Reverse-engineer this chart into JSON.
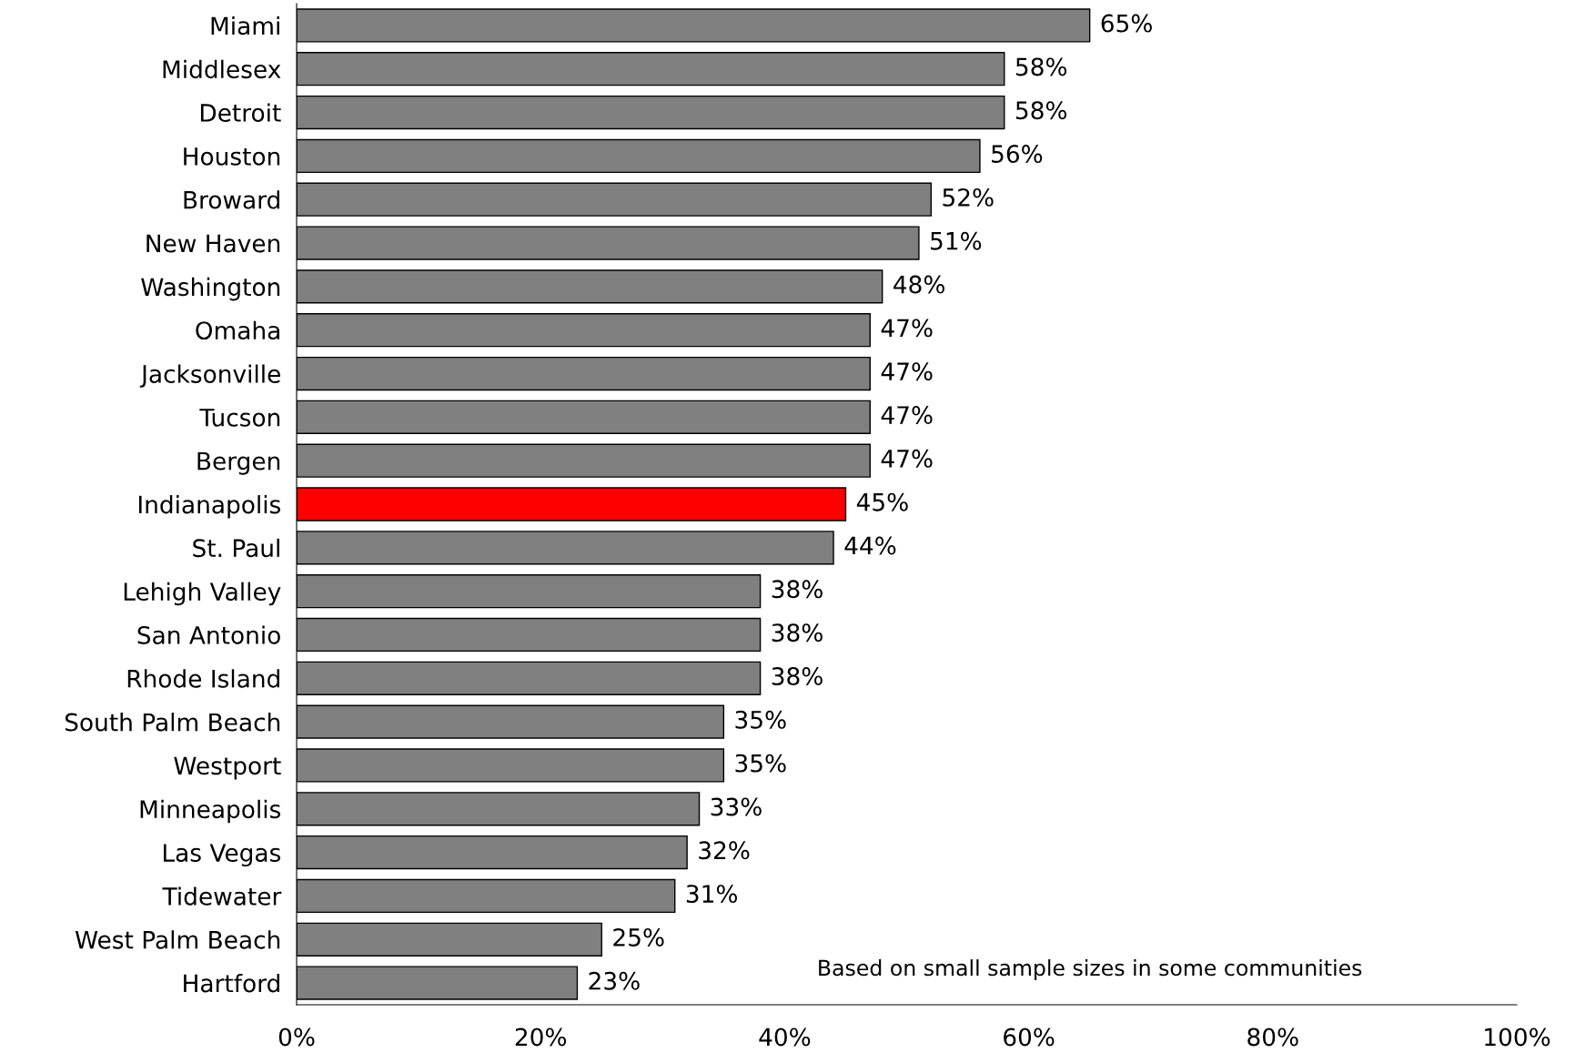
{
  "chart_data": {
    "type": "bar",
    "orientation": "horizontal",
    "categories": [
      "Miami",
      "Middlesex",
      "Detroit",
      "Houston",
      "Broward",
      "New Haven",
      "Washington",
      "Omaha",
      "Jacksonville",
      "Tucson",
      "Bergen",
      "Indianapolis",
      "St. Paul",
      "Lehigh Valley",
      "San Antonio",
      "Rhode Island",
      "South Palm Beach",
      "Westport",
      "Minneapolis",
      "Las Vegas",
      "Tidewater",
      "West Palm Beach",
      "Hartford"
    ],
    "values": [
      65,
      58,
      58,
      56,
      52,
      51,
      48,
      47,
      47,
      47,
      47,
      45,
      44,
      38,
      38,
      38,
      35,
      35,
      33,
      32,
      31,
      25,
      23
    ],
    "value_labels": [
      "65%",
      "58%",
      "58%",
      "56%",
      "52%",
      "51%",
      "48%",
      "47%",
      "47%",
      "47%",
      "47%",
      "45%",
      "44%",
      "38%",
      "38%",
      "38%",
      "35%",
      "35%",
      "33%",
      "32%",
      "31%",
      "25%",
      "23%"
    ],
    "colors": [
      "#808080",
      "#808080",
      "#808080",
      "#808080",
      "#808080",
      "#808080",
      "#808080",
      "#808080",
      "#808080",
      "#808080",
      "#808080",
      "#ff0000",
      "#808080",
      "#808080",
      "#808080",
      "#808080",
      "#808080",
      "#808080",
      "#808080",
      "#808080",
      "#808080",
      "#808080",
      "#808080"
    ],
    "xlim": [
      0,
      100
    ],
    "xticks": [
      {
        "value": 0,
        "label": "0%"
      },
      {
        "value": 20,
        "label": "20%"
      },
      {
        "value": 40,
        "label": "40%"
      },
      {
        "value": 60,
        "label": "60%"
      },
      {
        "value": 80,
        "label": "80%"
      },
      {
        "value": 100,
        "label": "100%"
      }
    ],
    "annotations": [
      "Based on small sample sizes in some communities"
    ],
    "grid": false,
    "legend": false
  }
}
